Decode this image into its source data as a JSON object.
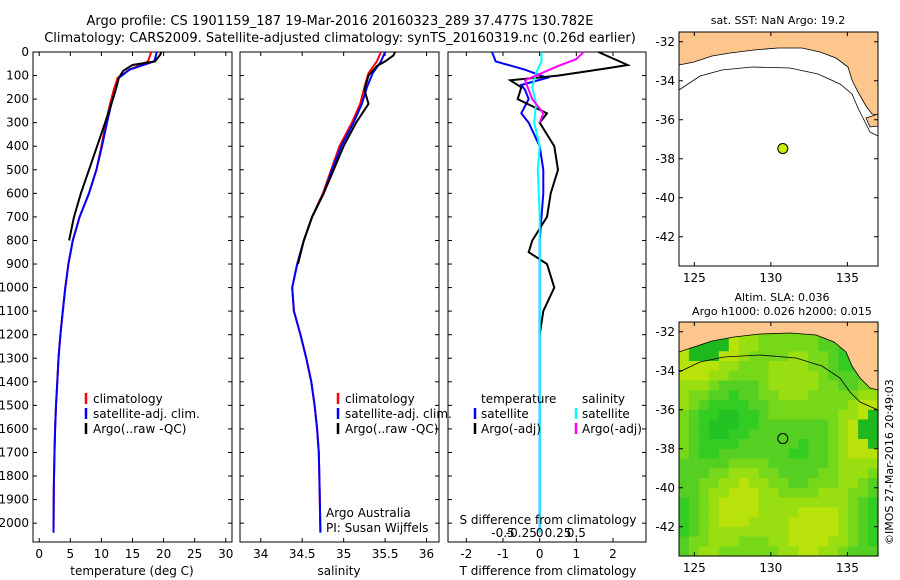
{
  "header": {
    "line1": "Argo profile: CS 1901159_187 19-Mar-2016 20160323_289 37.477S 130.782E",
    "line2": "Climatology: CARS2009. Satellite-adjusted climatology: synTS_20160319.nc (0.26d earlier)"
  },
  "colors": {
    "climatology": "#ff0000",
    "satellite": "#0000ff",
    "argo": "#000000",
    "sal_satellite": "#00ffff",
    "sal_argo": "#ff00ff",
    "land": "#fcc68c",
    "argo_marker": "#ccee00"
  },
  "chart_data": [
    {
      "type": "line",
      "id": "temperature",
      "xlabel": "temperature (deg C)",
      "ylabel": "",
      "xlim": [
        -1,
        31
      ],
      "ylim": [
        2080,
        0
      ],
      "xticks": [
        0,
        5,
        10,
        15,
        20,
        25,
        30
      ],
      "yticks": [
        0,
        100,
        200,
        300,
        400,
        500,
        600,
        700,
        800,
        900,
        1000,
        1100,
        1200,
        1300,
        1400,
        1500,
        1600,
        1700,
        1800,
        1900,
        2000
      ],
      "legend": [
        "climatology",
        "satellite-adj. clim.",
        "Argo(..raw -QC)"
      ],
      "series": [
        {
          "name": "climatology",
          "color": "#ff0000",
          "x": [
            18.0,
            17.5,
            14.5,
            12.6,
            12.0,
            11.4,
            10.7,
            10.0,
            9.2,
            8.0,
            6.5,
            5.4,
            4.7,
            4.2,
            3.8,
            3.4,
            3.1,
            2.9,
            2.7,
            2.55,
            2.45,
            2.35,
            2.3
          ],
          "y": [
            0,
            40,
            75,
            110,
            160,
            220,
            300,
            400,
            500,
            600,
            700,
            800,
            900,
            1000,
            1100,
            1200,
            1300,
            1400,
            1500,
            1600,
            1700,
            1850,
            2040
          ]
        },
        {
          "name": "satellite-adj. clim.",
          "color": "#0000ff",
          "x": [
            18.9,
            18.5,
            14.5,
            12.8,
            12.3,
            11.6,
            10.9,
            10.1,
            9.2,
            8.0,
            6.5,
            5.4,
            4.7,
            4.2,
            3.8,
            3.4,
            3.1,
            2.9,
            2.7,
            2.55,
            2.45,
            2.35,
            2.3
          ],
          "y": [
            0,
            40,
            75,
            110,
            160,
            220,
            300,
            400,
            500,
            600,
            700,
            800,
            900,
            1000,
            1100,
            1200,
            1300,
            1400,
            1500,
            1600,
            1700,
            1850,
            2040
          ]
        },
        {
          "name": "Argo(..raw -QC)",
          "color": "#000000",
          "x": [
            19.6,
            19.5,
            18.6,
            15.0,
            13.5,
            12.8,
            12.3,
            11.6,
            10.6,
            9.3,
            8.0,
            6.7,
            5.6,
            4.8
          ],
          "y": [
            0,
            10,
            40,
            55,
            80,
            110,
            160,
            220,
            300,
            400,
            500,
            600,
            700,
            800
          ]
        }
      ]
    },
    {
      "type": "line",
      "id": "salinity",
      "xlabel": "salinity",
      "xlim": [
        33.75,
        36.15
      ],
      "ylim": [
        2080,
        0
      ],
      "xticks": [
        34,
        34.5,
        35,
        35.5,
        36
      ],
      "legend": [
        "climatology",
        "satellite-adj. clim.",
        "Argo(..raw -QC)"
      ],
      "annotation": [
        "Argo Australia",
        "PI: Susan Wijffels"
      ],
      "series": [
        {
          "name": "climatology",
          "color": "#ff0000",
          "x": [
            35.45,
            35.4,
            35.3,
            35.25,
            35.2,
            35.1,
            34.95,
            34.85,
            34.75,
            34.62,
            34.52,
            34.44,
            34.38,
            34.4,
            34.48,
            34.55,
            34.61,
            34.65,
            34.68,
            34.7,
            34.71,
            34.72
          ],
          "y": [
            0,
            40,
            90,
            150,
            220,
            300,
            400,
            500,
            600,
            700,
            800,
            900,
            1000,
            1100,
            1200,
            1300,
            1400,
            1500,
            1600,
            1700,
            1850,
            2040
          ]
        },
        {
          "name": "satellite-adj. clim.",
          "color": "#0000ff",
          "x": [
            35.5,
            35.45,
            35.35,
            35.28,
            35.22,
            35.12,
            34.97,
            34.86,
            34.76,
            34.62,
            34.52,
            34.44,
            34.38,
            34.4,
            34.48,
            34.55,
            34.61,
            34.65,
            34.68,
            34.7,
            34.71,
            34.72
          ],
          "y": [
            0,
            40,
            90,
            150,
            220,
            300,
            400,
            500,
            600,
            700,
            800,
            900,
            1000,
            1100,
            1200,
            1300,
            1400,
            1500,
            1600,
            1700,
            1850,
            2040
          ]
        },
        {
          "name": "Argo(..raw -QC)",
          "color": "#000000",
          "x": [
            35.62,
            35.6,
            35.5,
            35.4,
            35.3,
            35.25,
            35.3,
            35.15,
            35.0,
            34.88,
            34.76,
            34.62,
            34.52,
            34.45
          ],
          "y": [
            0,
            15,
            40,
            60,
            100,
            160,
            220,
            300,
            400,
            500,
            600,
            700,
            800,
            900
          ]
        }
      ]
    },
    {
      "type": "line",
      "id": "difference",
      "xlabel": "T difference from climatology",
      "xlabel_top": "S difference from climatology",
      "xlim": [
        -2.5,
        2.9
      ],
      "ylim": [
        2080,
        0
      ],
      "xticks": [
        -2,
        -1,
        0,
        1,
        2
      ],
      "xticks_s": [
        "-0.5",
        "-0.25",
        "0",
        "0.25",
        "0.5"
      ],
      "legend_left_title": "temperature",
      "legend_right_title": "salinity",
      "legend": [
        "satellite",
        "Argo(-adj)",
        "satellite",
        "Argo(-adj)"
      ],
      "series": [
        {
          "name": "temperature satellite",
          "color": "#0000ff",
          "x": [
            -1.3,
            -1.2,
            -0.4,
            0.2,
            -0.5,
            -0.4,
            -0.3,
            -0.5,
            -0.3,
            0.0,
            0.1,
            0.1,
            0.05,
            0.0,
            0.0,
            0.0,
            0.0,
            0.0,
            0.0
          ],
          "y": [
            0,
            40,
            75,
            110,
            140,
            160,
            200,
            260,
            300,
            400,
            500,
            600,
            700,
            800,
            1000,
            1300,
            1600,
            1900,
            2040
          ]
        },
        {
          "name": "temperature Argo(-adj)",
          "color": "#000000",
          "x": [
            1.6,
            2.4,
            1.8,
            0.5,
            -0.8,
            -0.5,
            -0.6,
            0.2,
            0.0,
            0.4,
            0.5,
            0.3,
            0.2,
            -0.2,
            -0.3,
            0.2,
            0.4,
            0.1,
            0.0
          ],
          "y": [
            0,
            55,
            70,
            100,
            120,
            150,
            200,
            260,
            300,
            400,
            500,
            600,
            700,
            800,
            850,
            900,
            1000,
            1100,
            1200
          ]
        },
        {
          "name": "salinity satellite",
          "color": "#00ffff",
          "x": [
            0.05,
            0.05,
            -0.1,
            -0.2,
            -0.1,
            -0.15,
            0.0,
            -0.05,
            0.0,
            0.0,
            0.0,
            0.0
          ],
          "y": [
            0,
            40,
            90,
            150,
            220,
            300,
            400,
            500,
            700,
            1000,
            1500,
            2040
          ]
        },
        {
          "name": "salinity Argo(-adj)",
          "color": "#ff00ff",
          "x": [
            1.2,
            1.0,
            0.5,
            0.2,
            -0.4,
            -0.2,
            0.1,
            0.0
          ],
          "y": [
            0,
            30,
            60,
            80,
            120,
            200,
            260,
            300
          ]
        }
      ]
    },
    {
      "type": "scatter",
      "id": "sst_map",
      "title": "sat. SST: NaN Argo: 19.2",
      "xlim": [
        124,
        137
      ],
      "ylim": [
        -43.5,
        -31.5
      ],
      "xticks": [
        125,
        130,
        135
      ],
      "yticks": [
        -32,
        -34,
        -36,
        -38,
        -40,
        -42
      ],
      "points": [
        {
          "x": 130.782,
          "y": -37.477
        }
      ]
    },
    {
      "type": "heatmap",
      "id": "sla_map",
      "title_line1": "Altim. SLA: 0.036",
      "title_line2": "Argo h1000: 0.026 h2000: 0.015",
      "xlim": [
        124,
        137
      ],
      "ylim": [
        -43.5,
        -31.5
      ],
      "xticks": [
        125,
        130,
        135
      ],
      "yticks": [
        -32,
        -34,
        -36,
        -38,
        -40,
        -42
      ],
      "points": [
        {
          "x": 130.782,
          "y": -37.477
        }
      ]
    }
  ],
  "credit": "©IMOS 27-Mar-2016 20:49:03"
}
